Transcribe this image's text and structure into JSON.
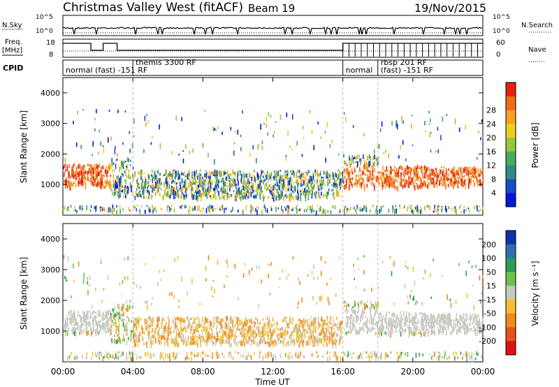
{
  "header": {
    "station": "Christmas Valley West (fitACF)",
    "beam": "Beam 19",
    "date": "19/Nov/2015"
  },
  "strips": {
    "nsky_label": "N.Sky",
    "nsky_ticks": [
      "10^5",
      "10^0"
    ],
    "nsearch_label": "N.Search",
    "nsearch_ticks": [
      "10^5",
      "10^0"
    ],
    "freq_label_1": "Freq.",
    "freq_label_2": "[MHz]",
    "freq_ticks": [
      "18",
      "8"
    ],
    "nave_label": "Nave",
    "nave_ticks": [
      "60",
      "0"
    ],
    "cpid_label": "CPID",
    "cpid_segments": [
      {
        "label": "normal (fast) -151 RF",
        "start": 0,
        "end": 4
      },
      {
        "label": "themis 3300 RF",
        "start": 4,
        "end": 16
      },
      {
        "label": "normal",
        "start": 16,
        "end": 18
      },
      {
        "label": "rbsp 201 RF",
        "start": 18,
        "end": 24
      },
      {
        "label": "(fast) -151 RF",
        "start": 18,
        "end": 24
      }
    ]
  },
  "x_axis": {
    "label": "Time UT",
    "ticks": [
      "00:00",
      "04:00",
      "08:00",
      "12:00",
      "16:00",
      "20:00",
      "00:00"
    ]
  },
  "panels": [
    {
      "ylabel": "Slant Range [km]",
      "yticks": [
        "1000",
        "2000",
        "3000",
        "4000"
      ],
      "cbar_label": "Power [dB]",
      "cbar_ticks": [
        "4",
        "8",
        "12",
        "16",
        "20",
        "24",
        "28"
      ],
      "cbar_colors": [
        "#0018d8",
        "#1a4ec4",
        "#2e8b7f",
        "#4ca85c",
        "#92c83a",
        "#e8d020",
        "#f5a020",
        "#f06a18",
        "#e82010"
      ]
    },
    {
      "ylabel": "Slant Range [km]",
      "yticks": [
        "1000",
        "2000",
        "3000",
        "4000"
      ],
      "cbar_label": "Velocity [m s⁻¹]",
      "cbar_ticks": [
        "200",
        "100",
        "50",
        "15",
        "-15",
        "-50",
        "-100",
        "-200"
      ],
      "cbar_colors": [
        "#1030b0",
        "#2f6fb0",
        "#2f9a5a",
        "#6cc24a",
        "#c8c8c0",
        "#f2c030",
        "#f08a1c",
        "#e8501a",
        "#e01010"
      ]
    }
  ],
  "chart_data": [
    {
      "type": "heatmap",
      "title": "Christmas Valley West (fitACF) Beam 19 19/Nov/2015",
      "xlabel": "Time UT",
      "ylabel": "Slant Range [km]",
      "xlim": [
        0,
        24
      ],
      "ylim": [
        0,
        4500
      ],
      "colorbar": {
        "label": "Power [dB]",
        "range": [
          0,
          32
        ]
      },
      "grid": false,
      "series": [
        {
          "name": "Power [dB]",
          "regions": [
            {
              "t0": 0.0,
              "t1": 2.7,
              "r0": 1000,
              "r1": 1700,
              "value": 30
            },
            {
              "t0": 2.7,
              "t1": 4.0,
              "r0": 700,
              "r1": 1900,
              "value": 14
            },
            {
              "t0": 4.0,
              "t1": 16.0,
              "r0": 600,
              "r1": 1500,
              "value": 12
            },
            {
              "t0": 16.0,
              "t1": 18.0,
              "r0": 1000,
              "r1": 2000,
              "value": 29
            },
            {
              "t0": 18.0,
              "t1": 24.0,
              "r0": 1000,
              "r1": 1600,
              "value": 30
            }
          ]
        }
      ]
    },
    {
      "type": "heatmap",
      "title": "",
      "xlabel": "Time UT",
      "ylabel": "Slant Range [km]",
      "xlim": [
        0,
        24
      ],
      "ylim": [
        0,
        4500
      ],
      "colorbar": {
        "label": "Velocity [m s⁻¹]",
        "range": [
          -200,
          200
        ]
      },
      "grid": false,
      "series": [
        {
          "name": "Velocity [m s⁻¹]",
          "regions": [
            {
              "t0": 0.0,
              "t1": 2.7,
              "r0": 900,
              "r1": 1700,
              "value": 0
            },
            {
              "t0": 2.7,
              "t1": 4.0,
              "r0": 800,
              "r1": 1800,
              "value": 40
            },
            {
              "t0": 4.0,
              "t1": 16.0,
              "r0": 600,
              "r1": 1400,
              "value": -40
            },
            {
              "t0": 16.0,
              "t1": 24.0,
              "r0": 900,
              "r1": 1800,
              "value": 0
            }
          ]
        }
      ]
    }
  ]
}
